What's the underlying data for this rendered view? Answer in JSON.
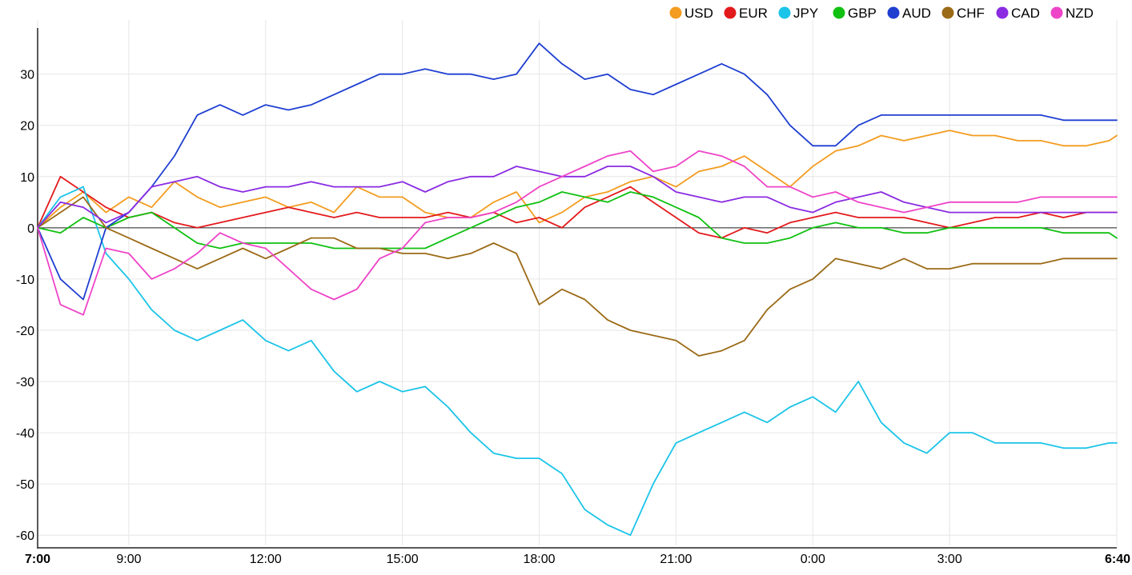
{
  "chart_data": {
    "type": "line",
    "title": "",
    "xlabel": "",
    "ylabel": "",
    "ylim": [
      -62,
      39
    ],
    "grid": true,
    "legend_position": "top-right",
    "x_ticks": [
      {
        "x": 0,
        "label": "7:00",
        "bold": true
      },
      {
        "x": 2,
        "label": "9:00"
      },
      {
        "x": 5,
        "label": "12:00"
      },
      {
        "x": 8,
        "label": "15:00"
      },
      {
        "x": 11,
        "label": "18:00"
      },
      {
        "x": 14,
        "label": "21:00"
      },
      {
        "x": 17,
        "label": "0:00"
      },
      {
        "x": 20,
        "label": "3:00"
      },
      {
        "x": 23.6667,
        "label": "6:40",
        "bold": true
      }
    ],
    "y_ticks": [
      30,
      20,
      10,
      0,
      -10,
      -20,
      -30,
      -40,
      -50,
      -60
    ],
    "x": [
      0,
      0.5,
      1,
      1.5,
      2,
      2.5,
      3,
      3.5,
      4,
      4.5,
      5,
      5.5,
      6,
      6.5,
      7,
      7.5,
      8,
      8.5,
      9,
      9.5,
      10,
      10.5,
      11,
      11.5,
      12,
      12.5,
      13,
      13.5,
      14,
      14.5,
      15,
      15.5,
      16,
      16.5,
      17,
      17.5,
      18,
      18.5,
      19,
      19.5,
      20,
      20.5,
      21,
      21.5,
      22,
      22.5,
      23,
      23.5,
      23.6667
    ],
    "series": [
      {
        "name": "USD",
        "color": "#f39c1f",
        "values": [
          0,
          4,
          7,
          3,
          6,
          4,
          9,
          6,
          4,
          5,
          6,
          4,
          5,
          3,
          8,
          6,
          6,
          3,
          2,
          2,
          5,
          7,
          1,
          3,
          6,
          7,
          9,
          10,
          8,
          11,
          12,
          14,
          11,
          8,
          12,
          15,
          16,
          18,
          17,
          18,
          19,
          18,
          18,
          17,
          17,
          16,
          16,
          17,
          18
        ]
      },
      {
        "name": "EUR",
        "color": "#e31a1c",
        "values": [
          0,
          10,
          7,
          4,
          2,
          3,
          1,
          0,
          1,
          2,
          3,
          4,
          3,
          2,
          3,
          2,
          2,
          2,
          3,
          2,
          3,
          1,
          2,
          0,
          4,
          6,
          8,
          5,
          2,
          -1,
          -2,
          0,
          -1,
          1,
          2,
          3,
          2,
          2,
          2,
          1,
          0,
          1,
          2,
          2,
          3,
          2,
          3,
          3,
          3
        ]
      },
      {
        "name": "JPY",
        "color": "#1bc4e8",
        "values": [
          0,
          6,
          8,
          -5,
          -10,
          -16,
          -20,
          -22,
          -20,
          -18,
          -22,
          -24,
          -22,
          -28,
          -32,
          -30,
          -32,
          -31,
          -35,
          -40,
          -44,
          -45,
          -45,
          -48,
          -55,
          -58,
          -60,
          -50,
          -42,
          -40,
          -38,
          -36,
          -38,
          -35,
          -33,
          -36,
          -30,
          -38,
          -42,
          -44,
          -40,
          -40,
          -42,
          -42,
          -42,
          -43,
          -43,
          -42,
          -42
        ]
      },
      {
        "name": "GBP",
        "color": "#10c010",
        "values": [
          0,
          -1,
          2,
          0,
          2,
          3,
          0,
          -3,
          -4,
          -3,
          -3,
          -3,
          -3,
          -4,
          -4,
          -4,
          -4,
          -4,
          -2,
          0,
          2,
          4,
          5,
          7,
          6,
          5,
          7,
          6,
          4,
          2,
          -2,
          -3,
          -3,
          -2,
          0,
          1,
          0,
          0,
          -1,
          -1,
          0,
          0,
          0,
          0,
          0,
          -1,
          -1,
          -1,
          -2
        ]
      },
      {
        "name": "AUD",
        "color": "#1f3fd1",
        "values": [
          0,
          -10,
          -14,
          0,
          3,
          8,
          14,
          22,
          24,
          22,
          24,
          23,
          24,
          26,
          28,
          30,
          30,
          31,
          30,
          30,
          29,
          30,
          36,
          32,
          29,
          30,
          27,
          26,
          28,
          30,
          32,
          30,
          26,
          20,
          16,
          16,
          20,
          22,
          22,
          22,
          22,
          22,
          22,
          22,
          22,
          21,
          21,
          21,
          21
        ]
      },
      {
        "name": "CHF",
        "color": "#9b6a16",
        "values": [
          0,
          3,
          6,
          0,
          -2,
          -4,
          -6,
          -8,
          -6,
          -4,
          -6,
          -4,
          -2,
          -2,
          -4,
          -4,
          -5,
          -5,
          -6,
          -5,
          -3,
          -5,
          -15,
          -12,
          -14,
          -18,
          -20,
          -21,
          -22,
          -25,
          -24,
          -22,
          -16,
          -12,
          -10,
          -6,
          -7,
          -8,
          -6,
          -8,
          -8,
          -7,
          -7,
          -7,
          -7,
          -6,
          -6,
          -6,
          -6
        ]
      },
      {
        "name": "CAD",
        "color": "#8a2be2",
        "values": [
          0,
          5,
          4,
          1,
          3,
          8,
          9,
          10,
          8,
          7,
          8,
          8,
          9,
          8,
          8,
          8,
          9,
          7,
          9,
          10,
          10,
          12,
          11,
          10,
          10,
          12,
          12,
          10,
          7,
          6,
          5,
          6,
          6,
          4,
          3,
          5,
          6,
          7,
          5,
          4,
          3,
          3,
          3,
          3,
          3,
          3,
          3,
          3,
          3
        ]
      },
      {
        "name": "NZD",
        "color": "#ee44c8",
        "values": [
          0,
          -15,
          -17,
          -4,
          -5,
          -10,
          -8,
          -5,
          -1,
          -3,
          -4,
          -8,
          -12,
          -14,
          -12,
          -6,
          -4,
          1,
          2,
          2,
          3,
          5,
          8,
          10,
          12,
          14,
          15,
          11,
          12,
          15,
          14,
          12,
          8,
          8,
          6,
          7,
          5,
          4,
          3,
          4,
          5,
          5,
          5,
          5,
          6,
          6,
          6,
          6,
          6
        ]
      }
    ]
  }
}
